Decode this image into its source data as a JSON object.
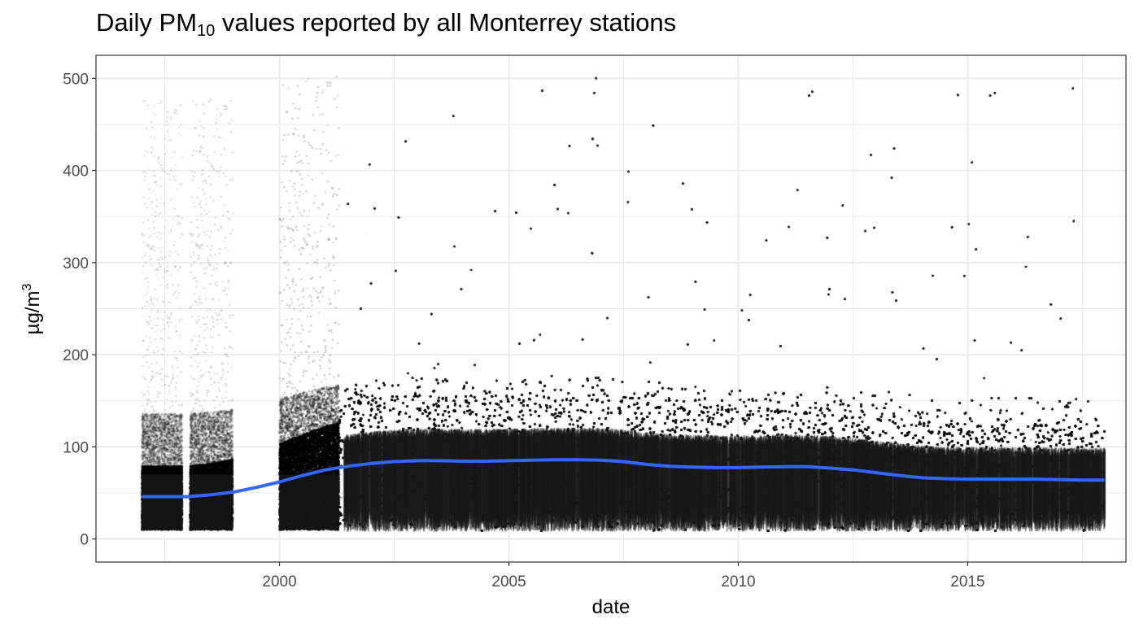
{
  "title": {
    "prefix": "Daily PM",
    "subscript": "10",
    "suffix": " values reported by all Monterrey stations"
  },
  "chart_data": {
    "type": "scatter",
    "title": "Daily PM10 values reported by all Monterrey stations",
    "xlabel": "date",
    "ylabel": "µg/m³",
    "ylabel_base": "µg/m",
    "ylabel_superscript": "3",
    "xlim": [
      1996.0,
      2018.45
    ],
    "ylim": [
      -25,
      525
    ],
    "x_ticks": [
      2000,
      2005,
      2010,
      2015
    ],
    "x_tick_labels": [
      "2000",
      "2005",
      "2010",
      "2015"
    ],
    "y_ticks": [
      0,
      100,
      200,
      300,
      400,
      500
    ],
    "y_tick_labels": [
      "0",
      "100",
      "200",
      "300",
      "400",
      "500"
    ],
    "grid": true,
    "legend": "none",
    "colors": {
      "points": "#000000",
      "smooth": "#3366ff",
      "grid": "#ebebeb",
      "panel_border": "#333333"
    },
    "data_coverage": [
      {
        "start": 1997.0,
        "end": 1997.88
      },
      {
        "start": 1998.05,
        "end": 1998.98
      },
      {
        "start": 2000.0,
        "end": 2001.3
      },
      {
        "start": 2001.3,
        "end": 2017.98
      }
    ],
    "series": [
      {
        "name": "",
        "kind": "smooth",
        "x": [
          1997.0,
          1997.5,
          1998.0,
          1998.5,
          1999.0,
          1999.5,
          2000.0,
          2000.5,
          2001.0,
          2001.5,
          2002.0,
          2002.5,
          2003.0,
          2003.5,
          2004.0,
          2004.5,
          2005.0,
          2005.5,
          2006.0,
          2006.5,
          2007.0,
          2007.5,
          2008.0,
          2008.5,
          2009.0,
          2009.5,
          2010.0,
          2010.5,
          2011.0,
          2011.5,
          2012.0,
          2012.5,
          2013.0,
          2013.5,
          2014.0,
          2014.5,
          2015.0,
          2015.5,
          2016.0,
          2016.5,
          2017.0,
          2017.5,
          2017.98
        ],
        "y": [
          46,
          46,
          46,
          48,
          51,
          56,
          62,
          69,
          75,
          79,
          82,
          84,
          85,
          85,
          84.5,
          84.5,
          85,
          85.5,
          86,
          86,
          85.5,
          84,
          81,
          79,
          78,
          77.5,
          77.5,
          78,
          78.5,
          78.5,
          77,
          75,
          72,
          69,
          66.5,
          65.5,
          65,
          65,
          65,
          65,
          64.5,
          64,
          64
        ]
      }
    ]
  }
}
